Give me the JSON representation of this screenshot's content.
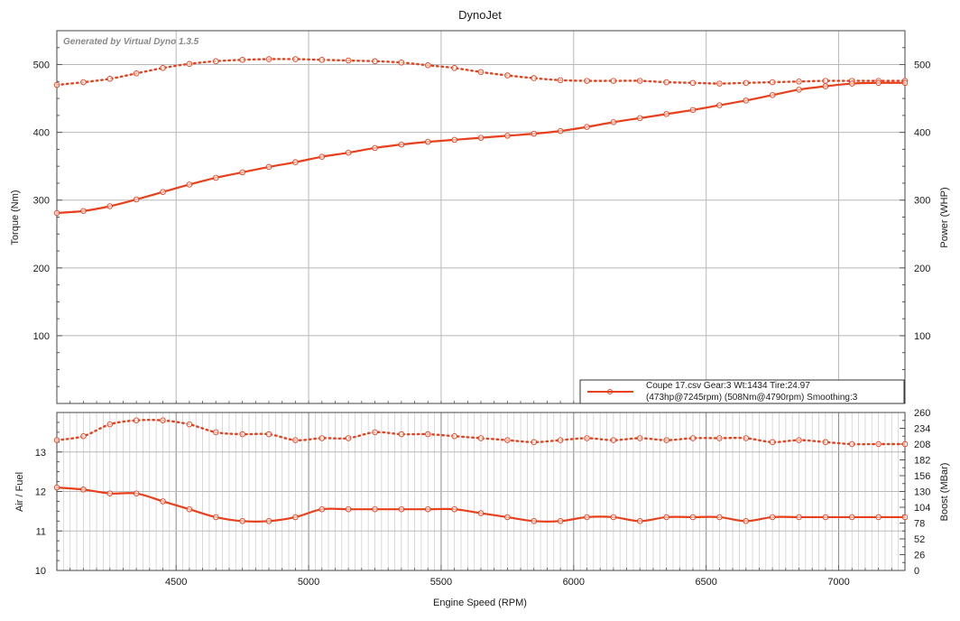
{
  "chart_data": [
    {
      "type": "line",
      "title": "DynoJet",
      "watermark": "Generated by Virtual Dyno 1.3.5",
      "ylabel": "Torque (Nm)",
      "y2label": "Power (WHP)",
      "xlim": [
        4050,
        7250
      ],
      "ylim": [
        0,
        550
      ],
      "y2lim": [
        0,
        550
      ],
      "yticks": [
        100,
        200,
        300,
        400,
        500
      ],
      "grid": true,
      "color": "#e8401c",
      "legend": {
        "placement": "bottom-right",
        "line1": "Coupe 17.csv Gear:3 Wt:1434 Tire:24.97",
        "line2": "(473hp@7245rpm) (508Nm@4790rpm) Smoothing:3"
      },
      "series": [
        {
          "style": "dotted",
          "x": [
            4050,
            4150,
            4250,
            4350,
            4450,
            4550,
            4650,
            4750,
            4850,
            4950,
            5050,
            5150,
            5250,
            5350,
            5450,
            5550,
            5650,
            5750,
            5850,
            5950,
            6050,
            6150,
            6250,
            6350,
            6450,
            6550,
            6650,
            6750,
            6850,
            6950,
            7050,
            7150,
            7250
          ],
          "y": [
            470,
            474,
            479,
            487,
            495,
            501,
            505,
            507,
            508,
            508,
            507,
            506,
            505,
            503,
            499,
            495,
            489,
            484,
            480,
            477,
            476,
            476,
            476,
            474,
            473,
            472,
            473,
            474,
            475,
            476,
            476,
            476,
            476
          ]
        },
        {
          "style": "solid",
          "x": [
            4050,
            4150,
            4250,
            4350,
            4450,
            4550,
            4650,
            4750,
            4850,
            4950,
            5050,
            5150,
            5250,
            5350,
            5450,
            5550,
            5650,
            5750,
            5850,
            5950,
            6050,
            6150,
            6250,
            6350,
            6450,
            6550,
            6650,
            6750,
            6850,
            6950,
            7050,
            7150,
            7250
          ],
          "y": [
            281,
            284,
            291,
            301,
            312,
            323,
            333,
            341,
            349,
            356,
            364,
            370,
            377,
            382,
            386,
            389,
            392,
            395,
            398,
            402,
            408,
            415,
            421,
            427,
            433,
            440,
            447,
            455,
            463,
            468,
            472,
            473,
            473
          ]
        }
      ]
    },
    {
      "type": "line",
      "xlabel": "Engine Speed (RPM)",
      "ylabel": "Air / Fuel",
      "y2label": "Boost (MBar)",
      "xlim": [
        4050,
        7250
      ],
      "xticks": [
        4500,
        5000,
        5500,
        6000,
        6500,
        7000
      ],
      "ylim": [
        10,
        14
      ],
      "yticks": [
        10,
        11,
        12,
        13
      ],
      "y2lim": [
        0,
        260
      ],
      "y2ticks": [
        0,
        26,
        52,
        78,
        104,
        130,
        156,
        182,
        208,
        234,
        260
      ],
      "grid": true,
      "color": "#e8401c",
      "series": [
        {
          "style": "dotted",
          "x": [
            4050,
            4150,
            4250,
            4350,
            4450,
            4550,
            4650,
            4750,
            4850,
            4950,
            5050,
            5150,
            5250,
            5350,
            5450,
            5550,
            5650,
            5750,
            5850,
            5950,
            6050,
            6150,
            6250,
            6350,
            6450,
            6550,
            6650,
            6750,
            6850,
            6950,
            7050,
            7150,
            7250
          ],
          "y": [
            13.3,
            13.4,
            13.7,
            13.8,
            13.8,
            13.7,
            13.5,
            13.45,
            13.45,
            13.3,
            13.35,
            13.35,
            13.5,
            13.45,
            13.45,
            13.4,
            13.35,
            13.3,
            13.25,
            13.3,
            13.35,
            13.3,
            13.35,
            13.3,
            13.35,
            13.35,
            13.35,
            13.25,
            13.3,
            13.25,
            13.2,
            13.2,
            13.2
          ]
        },
        {
          "style": "solid",
          "x": [
            4050,
            4150,
            4250,
            4350,
            4450,
            4550,
            4650,
            4750,
            4850,
            4950,
            5050,
            5150,
            5250,
            5350,
            5450,
            5550,
            5650,
            5750,
            5850,
            5950,
            6050,
            6150,
            6250,
            6350,
            6450,
            6550,
            6650,
            6750,
            6850,
            6950,
            7050,
            7150,
            7250
          ],
          "y": [
            12.1,
            12.05,
            11.95,
            11.95,
            11.75,
            11.55,
            11.35,
            11.25,
            11.25,
            11.35,
            11.55,
            11.55,
            11.55,
            11.55,
            11.55,
            11.55,
            11.45,
            11.35,
            11.25,
            11.25,
            11.35,
            11.35,
            11.25,
            11.35,
            11.35,
            11.35,
            11.25,
            11.35,
            11.35,
            11.35,
            11.35,
            11.35,
            11.35
          ]
        }
      ]
    }
  ]
}
